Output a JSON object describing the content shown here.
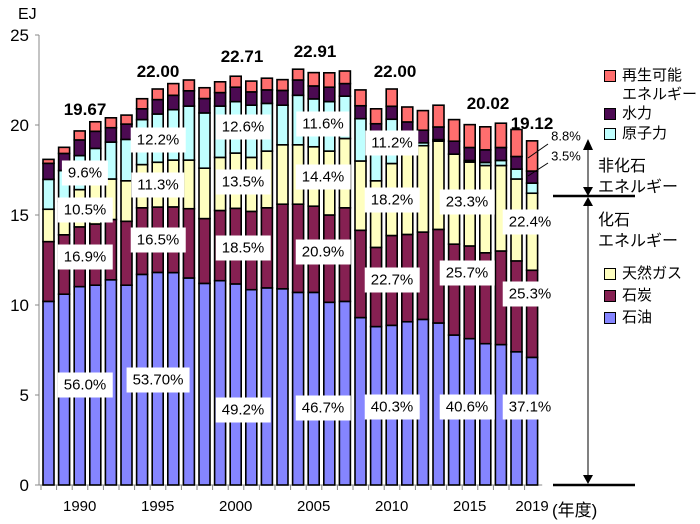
{
  "chart_data": {
    "type": "bar",
    "stacked": true,
    "unit_label": "EJ",
    "xlabel": "(年度)",
    "ylim": [
      0,
      25
    ],
    "yticks": [
      "0",
      "5",
      "10",
      "15",
      "20",
      "25"
    ],
    "xtick_labels": [
      "1990",
      "1995",
      "2000",
      "2005",
      "2010",
      "2015",
      "2019"
    ],
    "x": [
      1988,
      1989,
      1990,
      1991,
      1992,
      1993,
      1994,
      1995,
      1996,
      1997,
      1998,
      1999,
      2000,
      2001,
      2002,
      2003,
      2004,
      2005,
      2006,
      2007,
      2008,
      2009,
      2010,
      2011,
      2012,
      2013,
      2014,
      2015,
      2016,
      2017,
      2018,
      2019
    ],
    "series": [
      {
        "name": "石油",
        "color": "#8585ff",
        "values": [
          10.2,
          10.6,
          11.02,
          11.1,
          11.4,
          11.1,
          11.7,
          11.81,
          11.8,
          11.5,
          11.2,
          11.35,
          11.17,
          10.85,
          10.95,
          10.9,
          10.7,
          10.7,
          10.15,
          10.2,
          9.3,
          8.8,
          8.87,
          9.07,
          9.2,
          9.0,
          8.33,
          8.13,
          7.85,
          7.8,
          7.4,
          7.09
        ]
      },
      {
        "name": "石炭",
        "color": "#862052",
        "values": [
          3.32,
          3.3,
          3.32,
          3.4,
          3.35,
          3.55,
          3.7,
          3.63,
          3.65,
          3.85,
          3.6,
          3.9,
          4.2,
          4.35,
          4.45,
          4.7,
          4.9,
          4.79,
          4.85,
          5.2,
          4.85,
          4.4,
          4.99,
          4.85,
          4.85,
          5.2,
          5.05,
          5.15,
          5.05,
          5.2,
          5.05,
          4.84
        ]
      },
      {
        "name": "天然ガス",
        "color": "#ffffc0",
        "values": [
          1.8,
          1.85,
          2.07,
          2.2,
          2.25,
          2.25,
          2.4,
          2.49,
          2.6,
          2.7,
          2.8,
          2.95,
          3.07,
          3.0,
          3.15,
          3.3,
          3.3,
          3.3,
          3.55,
          3.85,
          3.85,
          3.7,
          4.0,
          4.55,
          4.8,
          4.9,
          5.0,
          4.66,
          4.85,
          4.75,
          4.55,
          4.28
        ]
      },
      {
        "name": "原子力",
        "color": "#c0ffff",
        "values": [
          1.66,
          1.72,
          1.89,
          2.0,
          2.05,
          2.3,
          2.5,
          2.68,
          2.8,
          3.0,
          3.07,
          2.85,
          2.86,
          2.9,
          2.65,
          2.2,
          2.75,
          2.66,
          2.75,
          2.35,
          2.35,
          2.45,
          2.46,
          0.95,
          0.16,
          0.09,
          0.0,
          0.09,
          0.17,
          0.28,
          0.55,
          0.56
        ]
      },
      {
        "name": "水力",
        "color": "#4c0a52",
        "values": [
          0.89,
          0.95,
          0.87,
          0.95,
          0.8,
          0.85,
          0.6,
          0.8,
          0.8,
          0.85,
          0.8,
          0.75,
          0.8,
          0.74,
          0.75,
          0.82,
          0.85,
          0.72,
          0.8,
          0.7,
          0.72,
          0.72,
          0.72,
          0.75,
          0.7,
          0.7,
          0.72,
          0.72,
          0.7,
          0.72,
          0.7,
          0.67
        ]
      },
      {
        "name": "再生可能エネルギー",
        "color": "#ff6e6e",
        "values": [
          0.22,
          0.34,
          0.5,
          0.53,
          0.55,
          0.5,
          0.56,
          0.59,
          0.65,
          0.6,
          0.6,
          0.6,
          0.61,
          0.6,
          0.65,
          0.6,
          0.6,
          0.74,
          0.8,
          0.7,
          0.88,
          0.83,
          0.96,
          0.83,
          1.09,
          1.21,
          1.2,
          1.27,
          1.28,
          1.35,
          1.5,
          1.68
        ]
      }
    ],
    "totals": [
      {
        "year": 1990,
        "label": "19.67"
      },
      {
        "year": 1995,
        "label": "22.00"
      },
      {
        "year": 2000,
        "label": "22.71"
      },
      {
        "year": 2005,
        "label": "22.91"
      },
      {
        "year": 2010,
        "label": "22.00"
      },
      {
        "year": 2015,
        "label": "20.02"
      },
      {
        "year": 2019,
        "label": "19.12"
      }
    ],
    "share_labels": {
      "y1990": {
        "nuclear": "9.6%",
        "gas": "10.5%",
        "coal": "16.9%",
        "oil": "56.0%"
      },
      "y1995": {
        "nuclear": "12.2%",
        "gas": "11.3%",
        "coal": "16.5%",
        "oil": "53.70%"
      },
      "y2000": {
        "nuclear": "12.6%",
        "gas": "13.5%",
        "coal": "18.5%",
        "oil": "49.2%"
      },
      "y2005": {
        "nuclear": "11.6%",
        "gas": "14.4%",
        "coal": "20.9%",
        "oil": "46.7%"
      },
      "y2010": {
        "nuclear": "11.2%",
        "gas": "18.2%",
        "coal": "22.7%",
        "oil": "40.3%"
      },
      "y2015": {
        "gas": "23.3%",
        "coal": "25.7%",
        "oil": "40.6%"
      },
      "y2019": {
        "renewable": "8.8%",
        "hydro": "3.5%",
        "gas": "22.4%",
        "coal": "25.3%",
        "oil": "37.1%"
      }
    },
    "legend_top": [
      "再生可能",
      "エネルギー",
      "水力",
      "原子力"
    ],
    "legend_bottom": [
      "天然ガス",
      "石炭",
      "石油"
    ],
    "brackets": {
      "non_fossil": [
        "非化石",
        "エネルギー"
      ],
      "fossil": [
        "化石",
        "エネルギー"
      ]
    }
  }
}
